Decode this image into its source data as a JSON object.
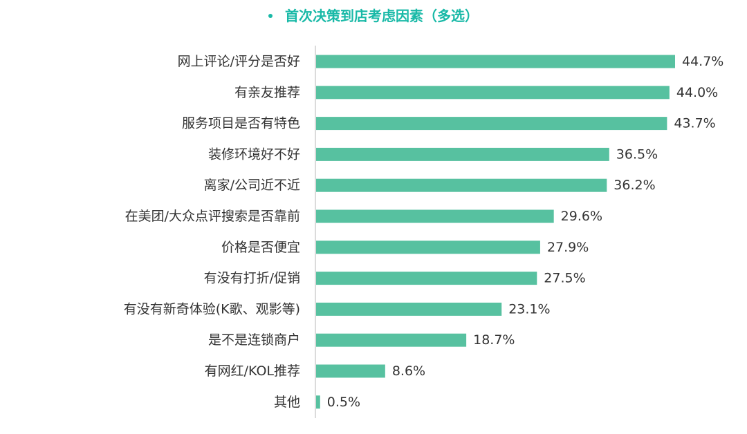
{
  "chart_data": {
    "type": "bar",
    "orientation": "horizontal",
    "title": "首次决策到店考虑因素（多选）",
    "categories": [
      "网上评论/评分是否好",
      "有亲友推荐",
      "服务项目是否有特色",
      "装修环境好不好",
      "离家/公司近不近",
      "在美团/大众点评搜索是否靠前",
      "价格是否便宜",
      "有没有打折/促销",
      "有没有新奇体验(K歌、观影等)",
      "是不是连锁商户",
      "有网红/KOL推荐",
      "其他"
    ],
    "values": [
      44.7,
      44.0,
      43.7,
      36.5,
      36.2,
      29.6,
      27.9,
      27.5,
      23.1,
      18.7,
      8.6,
      0.5
    ],
    "value_labels": [
      "44.7%",
      "44.0%",
      "43.7%",
      "36.5%",
      "36.2%",
      "29.6%",
      "27.9%",
      "27.5%",
      "23.1%",
      "18.7%",
      "8.6%",
      "0.5%"
    ],
    "xlim": [
      0,
      44.7
    ],
    "grid": false,
    "legend": "none",
    "bar_color": "#57c1a0",
    "title_color": "#19b9a7",
    "axis_color": "#cfcfcf"
  }
}
